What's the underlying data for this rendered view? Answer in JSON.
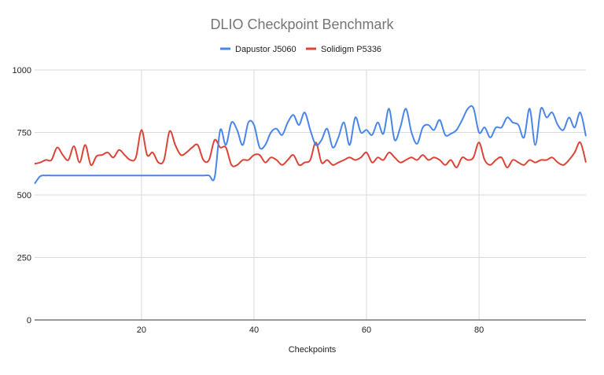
{
  "chart_data": {
    "type": "line",
    "title": "DLIO Checkpoint Benchmark",
    "xlabel": "Checkpoints",
    "ylabel": "",
    "xlim": [
      1,
      99
    ],
    "ylim": [
      0,
      1000
    ],
    "x_ticks": [
      20,
      40,
      60,
      80
    ],
    "y_ticks": [
      0,
      250,
      500,
      750,
      1000
    ],
    "grid": true,
    "legend_position": "top",
    "x": [
      1,
      2,
      3,
      4,
      5,
      6,
      7,
      8,
      9,
      10,
      11,
      12,
      13,
      14,
      15,
      16,
      17,
      18,
      19,
      20,
      21,
      22,
      23,
      24,
      25,
      26,
      27,
      28,
      29,
      30,
      31,
      32,
      33,
      34,
      35,
      36,
      37,
      38,
      39,
      40,
      41,
      42,
      43,
      44,
      45,
      46,
      47,
      48,
      49,
      50,
      51,
      52,
      53,
      54,
      55,
      56,
      57,
      58,
      59,
      60,
      61,
      62,
      63,
      64,
      65,
      66,
      67,
      68,
      69,
      70,
      71,
      72,
      73,
      74,
      75,
      76,
      77,
      78,
      79,
      80,
      81,
      82,
      83,
      84,
      85,
      86,
      87,
      88,
      89,
      90,
      91,
      92,
      93,
      94,
      95,
      96,
      97,
      98,
      99
    ],
    "series": [
      {
        "name": "Dapustor J5060",
        "color": "#4a86e8",
        "values": [
          545,
          575,
          578,
          578,
          578,
          578,
          578,
          578,
          578,
          578,
          578,
          578,
          578,
          578,
          578,
          578,
          578,
          578,
          578,
          578,
          578,
          578,
          578,
          578,
          578,
          578,
          578,
          578,
          578,
          578,
          578,
          578,
          570,
          760,
          700,
          790,
          760,
          700,
          790,
          780,
          690,
          700,
          750,
          765,
          740,
          790,
          820,
          780,
          830,
          760,
          700,
          720,
          765,
          690,
          730,
          790,
          700,
          810,
          750,
          760,
          740,
          790,
          745,
          845,
          720,
          770,
          845,
          750,
          705,
          770,
          780,
          760,
          800,
          740,
          745,
          760,
          800,
          845,
          848,
          750,
          770,
          730,
          770,
          770,
          810,
          790,
          780,
          730,
          845,
          700,
          845,
          810,
          830,
          780,
          760,
          810,
          770,
          830,
          735
        ]
      },
      {
        "name": "Solidigm P5336",
        "color": "#db4437",
        "values": [
          625,
          630,
          640,
          640,
          690,
          660,
          640,
          695,
          630,
          700,
          620,
          655,
          660,
          670,
          650,
          680,
          660,
          640,
          650,
          760,
          660,
          670,
          630,
          640,
          755,
          700,
          660,
          670,
          690,
          700,
          640,
          640,
          720,
          690,
          690,
          620,
          620,
          640,
          640,
          660,
          660,
          630,
          650,
          640,
          620,
          640,
          660,
          620,
          630,
          640,
          710,
          630,
          640,
          620,
          630,
          640,
          650,
          640,
          650,
          670,
          630,
          650,
          640,
          670,
          650,
          630,
          640,
          650,
          640,
          660,
          640,
          650,
          640,
          620,
          640,
          610,
          650,
          640,
          650,
          710,
          640,
          620,
          640,
          650,
          610,
          640,
          630,
          620,
          640,
          630,
          640,
          640,
          650,
          630,
          620,
          640,
          670,
          710,
          630
        ]
      }
    ]
  }
}
